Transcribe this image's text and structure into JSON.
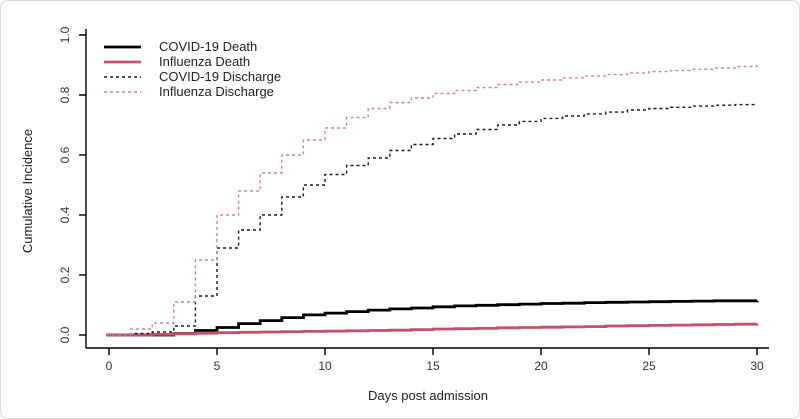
{
  "figure": {
    "background": "#ffffff",
    "border_color": "#d9d9d9"
  },
  "chart_data": {
    "type": "line",
    "subtype": "step",
    "title": "",
    "xlabel": "Days post admission",
    "ylabel": "Cumulative Incidence",
    "xlim": [
      0,
      30
    ],
    "ylim": [
      0.0,
      1.0
    ],
    "x_ticks": [
      0,
      5,
      10,
      15,
      20,
      25,
      30
    ],
    "y_ticks": [
      0.0,
      0.2,
      0.4,
      0.6,
      0.8,
      1.0
    ],
    "y_tick_labels": [
      "0.0",
      "0.2",
      "0.4",
      "0.6",
      "0.8",
      "1.0"
    ],
    "grid": false,
    "legend_position": "top-left",
    "x": [
      0,
      1,
      2,
      3,
      4,
      5,
      6,
      7,
      8,
      9,
      10,
      11,
      12,
      13,
      14,
      15,
      16,
      17,
      18,
      19,
      20,
      21,
      22,
      23,
      24,
      25,
      26,
      27,
      28,
      29,
      30
    ],
    "series": [
      {
        "name": "COVID-19 Death",
        "style": "solid",
        "color": "#000000",
        "line_width": 2.8,
        "values": [
          0,
          0,
          0,
          0.005,
          0.015,
          0.025,
          0.038,
          0.048,
          0.058,
          0.067,
          0.073,
          0.078,
          0.083,
          0.087,
          0.09,
          0.094,
          0.097,
          0.099,
          0.101,
          0.103,
          0.105,
          0.106,
          0.108,
          0.109,
          0.11,
          0.111,
          0.112,
          0.113,
          0.114,
          0.114,
          0.115
        ]
      },
      {
        "name": "Influenza Death",
        "style": "solid",
        "color": "#c4506b",
        "line_width": 2.8,
        "values": [
          0,
          0,
          0.002,
          0.004,
          0.006,
          0.008,
          0.009,
          0.01,
          0.011,
          0.012,
          0.013,
          0.014,
          0.015,
          0.016,
          0.018,
          0.02,
          0.021,
          0.022,
          0.024,
          0.025,
          0.026,
          0.027,
          0.028,
          0.03,
          0.031,
          0.032,
          0.033,
          0.034,
          0.035,
          0.036,
          0.037
        ]
      },
      {
        "name": "COVID-19 Discharge",
        "style": "dashed",
        "color": "#1a1a1a",
        "line_width": 1.4,
        "values": [
          0,
          0.005,
          0.01,
          0.03,
          0.13,
          0.29,
          0.35,
          0.4,
          0.46,
          0.5,
          0.535,
          0.565,
          0.59,
          0.615,
          0.635,
          0.655,
          0.67,
          0.685,
          0.7,
          0.712,
          0.722,
          0.73,
          0.737,
          0.743,
          0.75,
          0.755,
          0.759,
          0.763,
          0.766,
          0.768,
          0.77
        ]
      },
      {
        "name": "Influenza Discharge",
        "style": "dashed",
        "color": "#cc8596",
        "line_width": 1.4,
        "values": [
          0,
          0.02,
          0.04,
          0.11,
          0.25,
          0.4,
          0.48,
          0.54,
          0.6,
          0.65,
          0.69,
          0.725,
          0.755,
          0.775,
          0.79,
          0.805,
          0.815,
          0.825,
          0.835,
          0.843,
          0.85,
          0.857,
          0.863,
          0.868,
          0.873,
          0.878,
          0.882,
          0.886,
          0.89,
          0.895,
          0.9
        ]
      }
    ]
  }
}
